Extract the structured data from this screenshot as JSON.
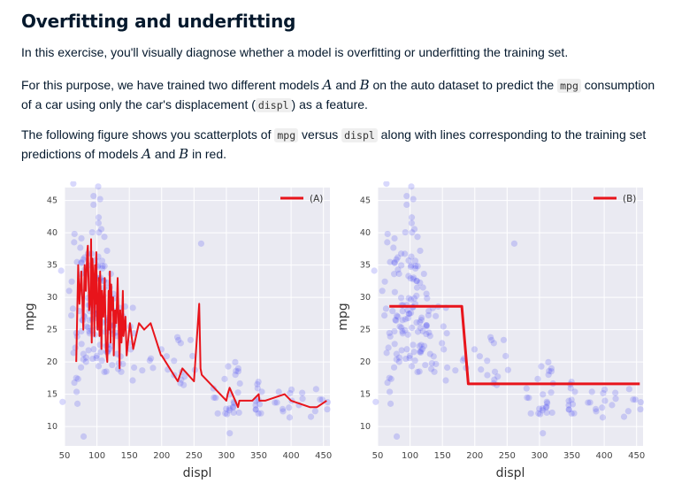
{
  "header": {
    "title": "Overfitting and underfitting"
  },
  "intro": {
    "text": "In this exercise, you'll visually diagnose whether a model is overfitting or underfitting the training set."
  },
  "para2": {
    "t1": "For this purpose, we have trained two different models ",
    "model_a": "A",
    "t2": " and ",
    "model_b": "B",
    "t3": " on the auto dataset to predict the ",
    "code_mpg": "mpg",
    "t4": " consumption of a car using only the car's displacement (",
    "code_displ": "displ",
    "t5": ") as a feature."
  },
  "para3": {
    "t1": "The following figure shows you scatterplots of ",
    "code_mpg": "mpg",
    "t2": " versus ",
    "code_displ": "displ",
    "t3": " along with lines corresponding to the training set predictions of models ",
    "model_a": "A",
    "t4": " and ",
    "model_b": "B",
    "t5": " in red."
  },
  "colors": {
    "panel_bg": "#eaeaf2",
    "scatter": "#4c4cf0",
    "line": "#e8141b",
    "text": "#05192d"
  },
  "chart_data": [
    {
      "type": "scatter",
      "xlabel": "displ",
      "ylabel": "mpg",
      "xlim": [
        50,
        460
      ],
      "ylim": [
        7,
        47
      ],
      "xticks": [
        50,
        100,
        150,
        200,
        250,
        300,
        350,
        400,
        450
      ],
      "yticks": [
        10,
        15,
        20,
        25,
        30,
        35,
        40,
        45
      ],
      "grid": true,
      "legend_position": "top-right",
      "series": [
        {
          "name": "(A)",
          "kind": "line",
          "x": [
            68,
            71,
            73,
            76,
            79,
            81,
            83,
            85,
            86,
            88,
            90,
            91,
            92,
            93,
            95,
            96,
            97,
            98,
            99,
            100,
            101,
            103,
            104,
            105,
            106,
            107,
            108,
            110,
            112,
            114,
            116,
            118,
            119,
            120,
            121,
            122,
            123,
            125,
            126,
            128,
            130,
            132,
            135,
            136,
            138,
            140,
            141,
            144,
            146,
            151,
            156,
            165,
            173,
            183,
            199,
            200,
            225,
            232,
            250,
            258,
            260,
            262,
            300,
            302,
            305,
            318,
            320,
            340,
            350,
            351,
            360,
            390,
            400,
            429,
            440,
            455
          ],
          "y": [
            20,
            35,
            29,
            34,
            25,
            35,
            31,
            37,
            38,
            28,
            30,
            39,
            23,
            36,
            32,
            24,
            35,
            29,
            37,
            27,
            25,
            33,
            24,
            34,
            29,
            22,
            31,
            27,
            33,
            22,
            20,
            31,
            25,
            34,
            23,
            32,
            28,
            30,
            21,
            28,
            26,
            33,
            19,
            28,
            23,
            31,
            24,
            27,
            21,
            26,
            22,
            26,
            25,
            26,
            21,
            21,
            17,
            19,
            17,
            29,
            19,
            18,
            14,
            15,
            16,
            13,
            14,
            14,
            15,
            14,
            14,
            15,
            14,
            13,
            13,
            14
          ]
        }
      ]
    },
    {
      "type": "scatter",
      "xlabel": "displ",
      "ylabel": "mpg",
      "xlim": [
        50,
        460
      ],
      "ylim": [
        7,
        47
      ],
      "xticks": [
        50,
        100,
        150,
        200,
        250,
        300,
        350,
        400,
        450
      ],
      "yticks": [
        10,
        15,
        20,
        25,
        30,
        35,
        40,
        45
      ],
      "grid": true,
      "legend_position": "top-right",
      "series": [
        {
          "name": "(B)",
          "kind": "line",
          "x": [
            68,
            180,
            190,
            455
          ],
          "y": [
            28.6,
            28.6,
            16.6,
            16.6
          ]
        }
      ]
    }
  ]
}
